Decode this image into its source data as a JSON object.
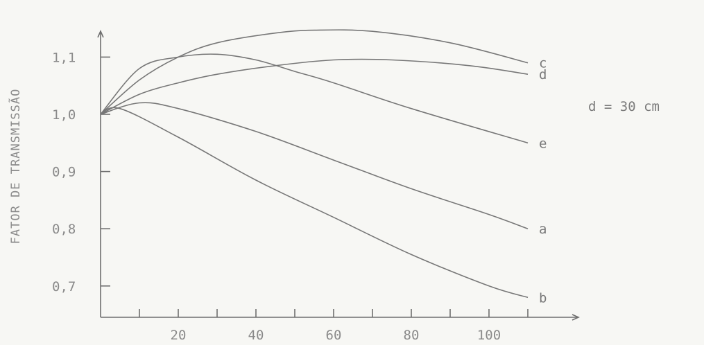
{
  "chart_data": {
    "type": "line",
    "title": "",
    "xlabel": "",
    "ylabel": "FATOR DE TRANSMISSÃO",
    "annotation": "d = 30 cm",
    "xlim": [
      0,
      115
    ],
    "ylim": [
      0.66,
      1.15
    ],
    "x_ticks": [
      20,
      40,
      60,
      80,
      100
    ],
    "y_ticks": [
      0.7,
      0.8,
      0.9,
      1.0,
      1.1
    ],
    "y_tick_labels": [
      "0,7",
      "0,8",
      "0,9",
      "1,0",
      "1,1"
    ],
    "grid": false,
    "series": [
      {
        "name": "a",
        "x": [
          0,
          10,
          20,
          40,
          60,
          80,
          100,
          110
        ],
        "y": [
          1.0,
          1.02,
          1.01,
          0.97,
          0.92,
          0.87,
          0.825,
          0.8
        ]
      },
      {
        "name": "b",
        "x": [
          0,
          5,
          20,
          40,
          60,
          80,
          100,
          110
        ],
        "y": [
          1.0,
          1.01,
          0.96,
          0.885,
          0.82,
          0.755,
          0.7,
          0.68
        ]
      },
      {
        "name": "c",
        "x": [
          0,
          10,
          20,
          30,
          45,
          55,
          70,
          90,
          110
        ],
        "y": [
          1.0,
          1.06,
          1.1,
          1.125,
          1.142,
          1.147,
          1.145,
          1.125,
          1.09
        ]
      },
      {
        "name": "d",
        "x": [
          0,
          10,
          20,
          30,
          45,
          60,
          75,
          95,
          110
        ],
        "y": [
          1.0,
          1.035,
          1.055,
          1.07,
          1.085,
          1.095,
          1.095,
          1.085,
          1.07
        ]
      },
      {
        "name": "e",
        "x": [
          0,
          10,
          20,
          30,
          40,
          50,
          60,
          80,
          110
        ],
        "y": [
          1.0,
          1.08,
          1.1,
          1.105,
          1.095,
          1.075,
          1.055,
          1.01,
          0.95
        ]
      }
    ]
  }
}
